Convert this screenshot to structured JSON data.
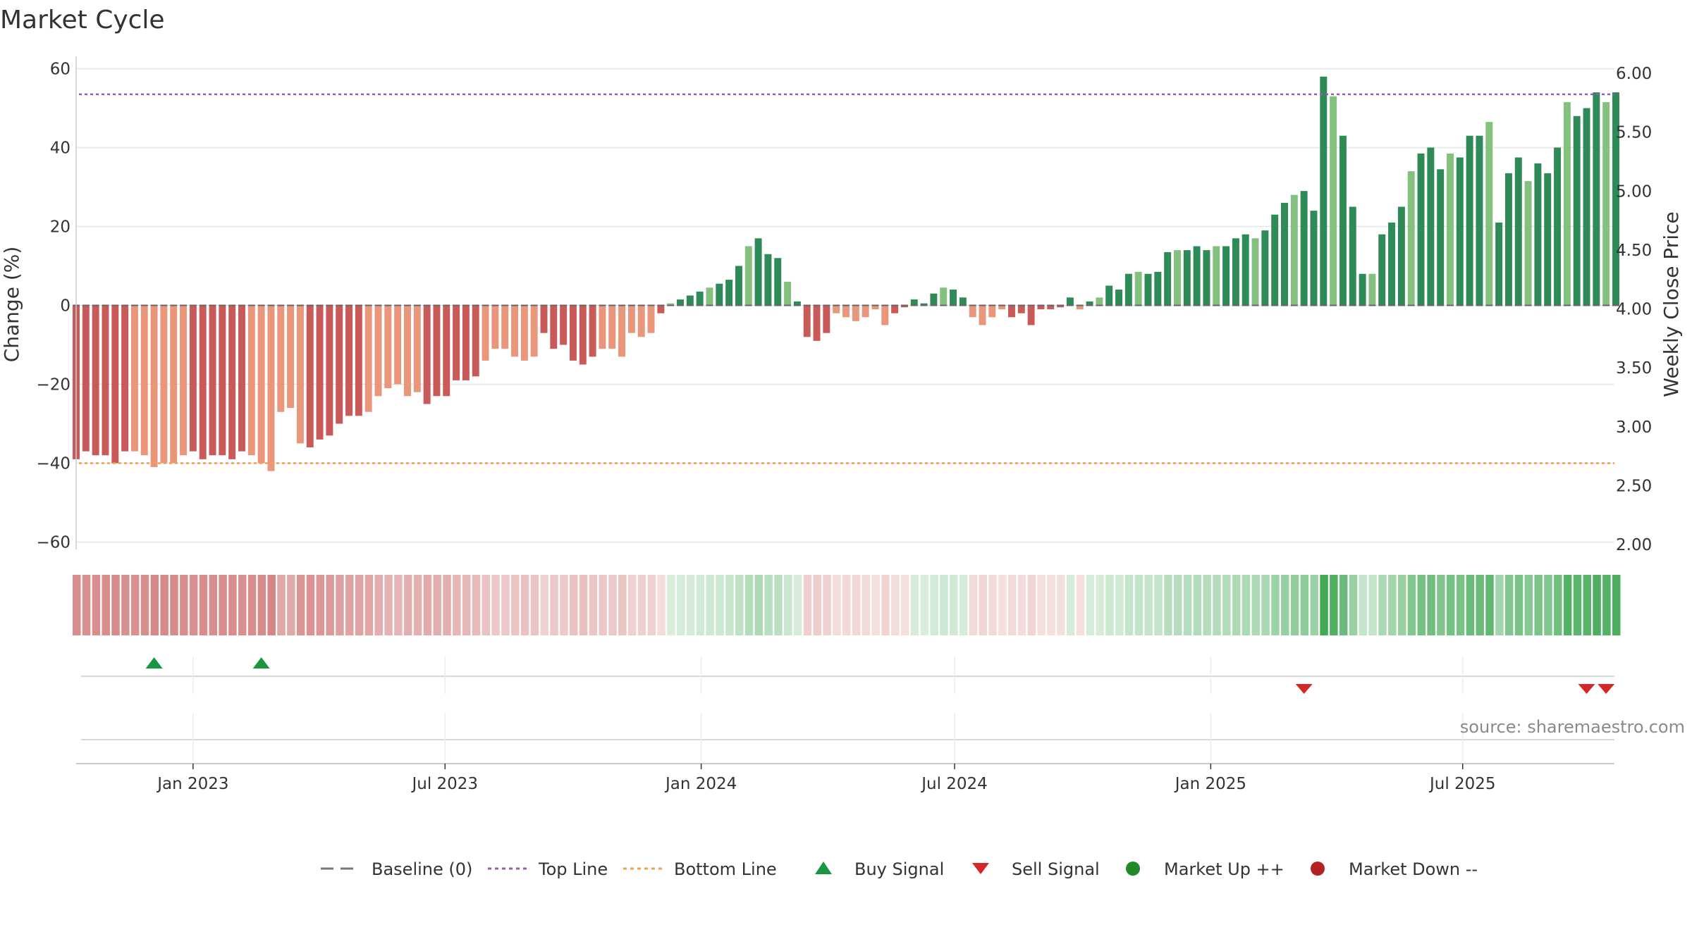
{
  "chart_data": {
    "type": "bar",
    "title": "Market Cycle",
    "ylabel": "Change (%)",
    "y2label": "Weekly Close Price",
    "ylim": [
      -63,
      63
    ],
    "y2lim": [
      1.95,
      6.05
    ],
    "yticks": [
      60,
      40,
      20,
      0,
      -20,
      -40,
      -60
    ],
    "ytick_labels": [
      "60",
      "40",
      "20",
      "0",
      "−20",
      "−40",
      "−60"
    ],
    "y2ticks": [
      "6.00",
      "5.50",
      "5.00",
      "4.50",
      "4.00",
      "3.50",
      "3.00",
      "2.50",
      "2.00"
    ],
    "xlim": [
      "2022-10-09",
      "2025-10-18"
    ],
    "x_ticks": [
      {
        "date": "2023-01-01",
        "label": "Jan 2023"
      },
      {
        "date": "2023-07-01",
        "label": "Jul 2023"
      },
      {
        "date": "2024-01-01",
        "label": "Jan 2024"
      },
      {
        "date": "2024-07-01",
        "label": "Jul 2024"
      },
      {
        "date": "2025-01-01",
        "label": "Jan 2025"
      },
      {
        "date": "2025-07-01",
        "label": "Jul 2025"
      }
    ],
    "start_date": "2022-10-09",
    "interval_days": 7,
    "top_line": 53.5,
    "bottom_line": -40,
    "baseline": 0,
    "values": [
      -39,
      -37,
      -38,
      -38,
      -40,
      -37,
      -37,
      -38,
      -41,
      -40,
      -40,
      -38,
      -37,
      -39,
      -38,
      -38,
      -39,
      -37,
      -38,
      -40,
      -42,
      -27,
      -26,
      -35,
      -36,
      -34,
      -33,
      -30,
      -28,
      -28,
      -27,
      -23,
      -21,
      -20,
      -23,
      -22,
      -25,
      -23,
      -23,
      -19,
      -19,
      -18,
      -14,
      -11,
      -11,
      -13,
      -14,
      -13,
      -7,
      -11,
      -10,
      -14,
      -15,
      -13,
      -11,
      -11,
      -13,
      -7,
      -8,
      -7,
      -2,
      0.5,
      1.5,
      2.5,
      3.5,
      4.5,
      5.5,
      6.5,
      10,
      15,
      17,
      13,
      12,
      6,
      1,
      -8,
      -9,
      -7,
      -2,
      -3,
      -4,
      -3,
      -1,
      -5,
      -2,
      -0.5,
      1.5,
      0.5,
      3,
      4.5,
      4,
      2,
      -3,
      -5,
      -3,
      -1,
      -3,
      -2,
      -5,
      -1,
      -1,
      -0.5,
      2,
      -1,
      1,
      2,
      5,
      4,
      8,
      8.5,
      8,
      8.5,
      13.5,
      14,
      14,
      15,
      14,
      15,
      15,
      17,
      18,
      17,
      19,
      23,
      26,
      28,
      29,
      24,
      58,
      53,
      43,
      25,
      8,
      8,
      18,
      21,
      25,
      34,
      38.5,
      40,
      34.5,
      38.5,
      37.5,
      43,
      43,
      46.5,
      21,
      33.5,
      37.5,
      31.5,
      36,
      33.5,
      40,
      51.5,
      48,
      50,
      54,
      51.5,
      54
    ],
    "buy_signals": [
      "2022-12-04",
      "2023-02-19"
    ],
    "sell_signals": [
      "2025-03-09",
      "2025-09-28",
      "2025-10-12"
    ],
    "legend": [
      {
        "label": "Baseline (0)",
        "symbol": "dash",
        "color": "#777777"
      },
      {
        "label": "Top Line",
        "symbol": "dotted",
        "color": "#9b59b6"
      },
      {
        "label": "Bottom Line",
        "symbol": "dotted",
        "color": "#f0a050"
      },
      {
        "label": "Buy Signal",
        "symbol": "triangle-up",
        "color": "#1a9641"
      },
      {
        "label": "Sell Signal",
        "symbol": "triangle-down",
        "color": "#d62728"
      },
      {
        "label": "Market Up ++",
        "symbol": "circle",
        "color": "#1f8b24"
      },
      {
        "label": "Market Down --",
        "symbol": "circle",
        "color": "#b22222"
      }
    ],
    "legend_position": "bottom-center",
    "grid": true,
    "source": "source: sharemaestro.com",
    "colors": {
      "pos_dark": "#2e8b57",
      "pos_light": "#85c17e",
      "neg_dark": "#c95a5a",
      "neg_light": "#e9967a"
    }
  }
}
